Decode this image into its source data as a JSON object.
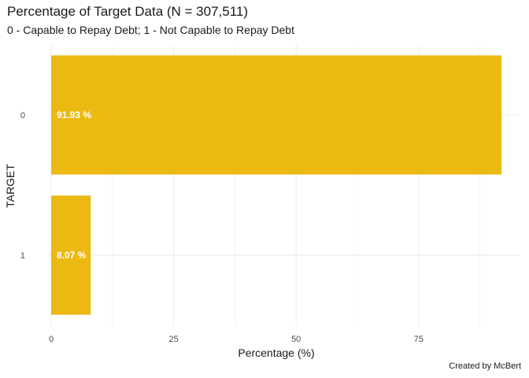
{
  "chart_data": {
    "type": "bar",
    "orientation": "horizontal",
    "title": "Percentage of Target Data (N = 307,511)",
    "subtitle": "0 - Capable to Repay Debt; 1 - Not Capable to Repay Debt",
    "caption": "Created by McBert",
    "xlabel": "Percentage (%)",
    "ylabel": "TARGET",
    "categories": [
      "0",
      "1"
    ],
    "values": [
      91.93,
      8.07
    ],
    "data_labels": [
      "91.93 %",
      "8.07 %"
    ],
    "xlim": [
      0,
      92
    ],
    "x_ticks": [
      0,
      25,
      50,
      75
    ],
    "x_tick_labels": [
      "0",
      "25",
      "50",
      "75"
    ],
    "bar_color": "#EBB912",
    "grid": true,
    "legend": "none"
  }
}
